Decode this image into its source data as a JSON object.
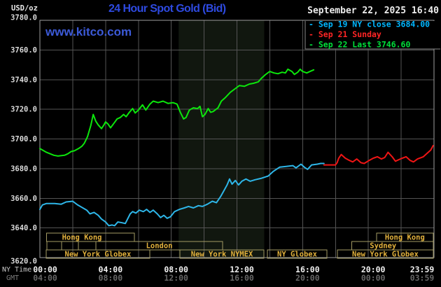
{
  "header": {
    "unit_label": "USD/oz",
    "title": "24 Hour Spot Gold (Bid)",
    "datetime": "September 22, 2025 16:40",
    "watermark": "www.kitco.com"
  },
  "legend": {
    "items": [
      {
        "text": "- Sep 19 NY close 3684.00",
        "color": "#00b6ff"
      },
      {
        "text": "- Sep 21 Sunday",
        "color": "#ff2525"
      },
      {
        "text": "- Sep 22 Last 3746.60",
        "color": "#00e03a"
      }
    ]
  },
  "axes": {
    "ny_label": "NY Time",
    "gmt_label": "GMT",
    "y_tick_labels": [
      "3780.0",
      "3760.0",
      "3740.0",
      "3720.0",
      "3700.0",
      "3680.0",
      "3660.0",
      "3640.0",
      "3620.0"
    ]
  },
  "chart_data": {
    "type": "line",
    "title": "24 Hour Spot Gold (Bid)",
    "y_axis": {
      "unit": "USD/oz",
      "min": 3620,
      "max": 3780,
      "step": 20
    },
    "x_axis": {
      "hours_span": 24,
      "grid_step_hours": 2
    },
    "x_ticks": [
      {
        "h": 0,
        "ny": "00:00",
        "gmt": "04:00"
      },
      {
        "h": 4,
        "ny": "04:00",
        "gmt": "08:00"
      },
      {
        "h": 8,
        "ny": "08:00",
        "gmt": "12:00"
      },
      {
        "h": 12,
        "ny": "12:00",
        "gmt": "16:00"
      },
      {
        "h": 16,
        "ny": "16:00",
        "gmt": "20:00"
      },
      {
        "h": 20,
        "ny": "20:00",
        "gmt": "00:00"
      },
      {
        "h": 24,
        "ny": "23:59",
        "gmt": "03:59"
      }
    ],
    "nymex_band": {
      "start_h": 8.45,
      "end_h": 13.66,
      "color": "#11170f"
    },
    "sessions": [
      {
        "row": 1,
        "start_h": 0.4,
        "end_h": 5.75,
        "label": "Hong Kong",
        "label_center_h": 2.56
      },
      {
        "row": 1,
        "start_h": 20.5,
        "end_h": 23.95,
        "label": "Hong Kong"
      },
      {
        "row": 2,
        "start_h": 0.43,
        "end_h": 1.32,
        "label": ""
      },
      {
        "row": 2,
        "start_h": 1.32,
        "end_h": 2.34,
        "label": ""
      },
      {
        "row": 2,
        "start_h": 2.34,
        "end_h": 3.41,
        "label": ""
      },
      {
        "row": 2,
        "start_h": 3.41,
        "end_h": 11.13,
        "label": "London"
      },
      {
        "row": 2,
        "start_h": 19.0,
        "end_h": 23.95,
        "label": "Sydney",
        "label_center_h": 20.9
      },
      {
        "row": 3,
        "start_h": 0.38,
        "end_h": 6.69,
        "label": "New York Globex"
      },
      {
        "row": 3,
        "start_h": 8.53,
        "end_h": 13.64,
        "label": "New York NYMEX"
      },
      {
        "row": 3,
        "start_h": 13.85,
        "end_h": 17.48,
        "label": "NY Globex"
      },
      {
        "row": 3,
        "start_h": 18.12,
        "end_h": 23.95,
        "label": "New York Globex"
      }
    ],
    "series": [
      {
        "name": "Sep 19 NY close",
        "color": "#2eb6e8",
        "close": 3684.0,
        "points": [
          [
            0,
            3652.5
          ],
          [
            0.15,
            3655.5
          ],
          [
            0.4,
            3656.5
          ],
          [
            0.9,
            3656.5
          ],
          [
            1.3,
            3656
          ],
          [
            1.6,
            3657.5
          ],
          [
            2.0,
            3658
          ],
          [
            2.3,
            3655.5
          ],
          [
            2.85,
            3652
          ],
          [
            3.05,
            3649.5
          ],
          [
            3.3,
            3650.5
          ],
          [
            3.55,
            3648.5
          ],
          [
            3.75,
            3646
          ],
          [
            4.0,
            3644
          ],
          [
            4.2,
            3641.5
          ],
          [
            4.4,
            3642
          ],
          [
            4.55,
            3641.5
          ],
          [
            4.75,
            3644
          ],
          [
            5.0,
            3643.5
          ],
          [
            5.2,
            3643
          ],
          [
            5.5,
            3649.5
          ],
          [
            5.65,
            3651
          ],
          [
            5.85,
            3650
          ],
          [
            6.05,
            3652
          ],
          [
            6.3,
            3651
          ],
          [
            6.5,
            3652.5
          ],
          [
            6.7,
            3650.5
          ],
          [
            6.9,
            3652
          ],
          [
            7.15,
            3649.5
          ],
          [
            7.35,
            3647
          ],
          [
            7.55,
            3648.5
          ],
          [
            7.75,
            3646.5
          ],
          [
            7.95,
            3647.5
          ],
          [
            8.2,
            3651
          ],
          [
            8.5,
            3652.5
          ],
          [
            8.8,
            3653.5
          ],
          [
            9.05,
            3654.5
          ],
          [
            9.35,
            3653.5
          ],
          [
            9.65,
            3655
          ],
          [
            9.9,
            3654.5
          ],
          [
            10.2,
            3656
          ],
          [
            10.5,
            3658
          ],
          [
            10.75,
            3657
          ],
          [
            11.0,
            3661
          ],
          [
            11.2,
            3665
          ],
          [
            11.4,
            3669
          ],
          [
            11.55,
            3673
          ],
          [
            11.7,
            3669.5
          ],
          [
            11.9,
            3672
          ],
          [
            12.1,
            3669
          ],
          [
            12.3,
            3671.5
          ],
          [
            12.55,
            3673
          ],
          [
            12.8,
            3671.5
          ],
          [
            13.1,
            3672.5
          ],
          [
            13.5,
            3673.5
          ],
          [
            13.9,
            3675
          ],
          [
            14.2,
            3678
          ],
          [
            14.6,
            3681
          ],
          [
            15.0,
            3681.5
          ],
          [
            15.4,
            3682
          ],
          [
            15.6,
            3680.5
          ],
          [
            15.9,
            3683
          ],
          [
            16.1,
            3681
          ],
          [
            16.3,
            3679.5
          ],
          [
            16.55,
            3682.5
          ],
          [
            16.9,
            3683
          ],
          [
            17.1,
            3683.5
          ],
          [
            17.3,
            3683.5
          ]
        ]
      },
      {
        "name": "Sep 21 Sunday",
        "color": "#ef1515",
        "points": [
          [
            17.3,
            3682.5
          ],
          [
            17.75,
            3682.5
          ],
          [
            18.0,
            3682.5
          ],
          [
            18.1,
            3684
          ],
          [
            18.2,
            3687
          ],
          [
            18.35,
            3689.5
          ],
          [
            18.6,
            3687
          ],
          [
            18.85,
            3685.5
          ],
          [
            19.05,
            3684.5
          ],
          [
            19.3,
            3686.5
          ],
          [
            19.55,
            3684
          ],
          [
            19.75,
            3683.5
          ],
          [
            20.05,
            3685.5
          ],
          [
            20.3,
            3687
          ],
          [
            20.55,
            3688
          ],
          [
            20.8,
            3686.5
          ],
          [
            21.0,
            3687.5
          ],
          [
            21.2,
            3691
          ],
          [
            21.45,
            3688
          ],
          [
            21.65,
            3685
          ],
          [
            21.95,
            3686.5
          ],
          [
            22.3,
            3688
          ],
          [
            22.55,
            3685.5
          ],
          [
            22.75,
            3684.5
          ],
          [
            23.0,
            3686.5
          ],
          [
            23.35,
            3688
          ],
          [
            23.6,
            3690.5
          ],
          [
            23.8,
            3692.5
          ],
          [
            23.95,
            3695.5
          ]
        ]
      },
      {
        "name": "Sep 22",
        "color": "#0ce60c",
        "last": 3746.6,
        "points": [
          [
            0,
            3693.5
          ],
          [
            0.4,
            3691
          ],
          [
            0.85,
            3689
          ],
          [
            1.1,
            3688.5
          ],
          [
            1.5,
            3689
          ],
          [
            1.7,
            3690
          ],
          [
            1.9,
            3691.5
          ],
          [
            2.1,
            3692
          ],
          [
            2.35,
            3693.5
          ],
          [
            2.55,
            3695
          ],
          [
            2.7,
            3697
          ],
          [
            2.9,
            3701.5
          ],
          [
            3.1,
            3709
          ],
          [
            3.25,
            3716.5
          ],
          [
            3.4,
            3712
          ],
          [
            3.55,
            3709.5
          ],
          [
            3.75,
            3707
          ],
          [
            3.9,
            3709.5
          ],
          [
            4.0,
            3711.5
          ],
          [
            4.15,
            3710
          ],
          [
            4.3,
            3707.5
          ],
          [
            4.5,
            3710.5
          ],
          [
            4.7,
            3713.5
          ],
          [
            4.9,
            3714.5
          ],
          [
            5.1,
            3716.5
          ],
          [
            5.25,
            3715
          ],
          [
            5.45,
            3718
          ],
          [
            5.65,
            3720.5
          ],
          [
            5.8,
            3717.5
          ],
          [
            6.0,
            3719.5
          ],
          [
            6.25,
            3723
          ],
          [
            6.45,
            3719.5
          ],
          [
            6.7,
            3723.5
          ],
          [
            6.9,
            3725.5
          ],
          [
            7.2,
            3724.5
          ],
          [
            7.5,
            3725.5
          ],
          [
            7.8,
            3724
          ],
          [
            8.1,
            3724.5
          ],
          [
            8.35,
            3723.5
          ],
          [
            8.55,
            3718
          ],
          [
            8.75,
            3713.5
          ],
          [
            8.9,
            3714.5
          ],
          [
            9.1,
            3719.5
          ],
          [
            9.35,
            3721
          ],
          [
            9.6,
            3720.5
          ],
          [
            9.75,
            3722
          ],
          [
            9.9,
            3715
          ],
          [
            10.05,
            3716.5
          ],
          [
            10.25,
            3720.5
          ],
          [
            10.4,
            3718
          ],
          [
            10.55,
            3718.5
          ],
          [
            10.85,
            3721
          ],
          [
            11.05,
            3725.5
          ],
          [
            11.3,
            3728
          ],
          [
            11.6,
            3731.5
          ],
          [
            11.9,
            3734
          ],
          [
            12.15,
            3736
          ],
          [
            12.45,
            3735.5
          ],
          [
            12.75,
            3737
          ],
          [
            13.0,
            3737.5
          ],
          [
            13.3,
            3738.5
          ],
          [
            13.5,
            3741
          ],
          [
            13.75,
            3743.5
          ],
          [
            14.0,
            3745.5
          ],
          [
            14.25,
            3744.5
          ],
          [
            14.5,
            3744
          ],
          [
            14.75,
            3745
          ],
          [
            14.95,
            3744.5
          ],
          [
            15.1,
            3747
          ],
          [
            15.35,
            3745.5
          ],
          [
            15.5,
            3743.5
          ],
          [
            15.7,
            3745
          ],
          [
            15.85,
            3747
          ],
          [
            16.0,
            3745.5
          ],
          [
            16.25,
            3744.5
          ],
          [
            16.45,
            3745.5
          ],
          [
            16.67,
            3746.6
          ]
        ]
      }
    ],
    "colors": {
      "background": "#000000",
      "grid": "#545454",
      "border": "#9e9e9e",
      "session_border": "#a49b63",
      "session_text": "#e2b13c",
      "y_label": "#dcdcdc",
      "ny_tick": "#f0f0f0",
      "gmt_tick": "#666666"
    }
  }
}
